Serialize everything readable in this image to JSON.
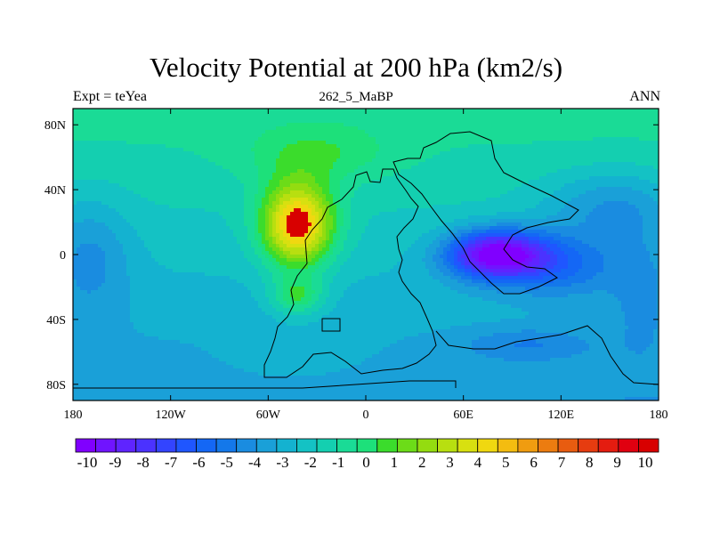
{
  "chart_data": {
    "type": "heatmap",
    "title": "Velocity Potential at 200 hPa (km2/s)",
    "left_label": "Expt = teYea",
    "center_label": "262_5_MaBP",
    "right_label": "ANN",
    "x_ticks": [
      "180",
      "120W",
      "60W",
      "0",
      "60E",
      "120E",
      "180"
    ],
    "x_tick_values": [
      -180,
      -120,
      -60,
      0,
      60,
      120,
      180
    ],
    "y_ticks": [
      "80N",
      "40N",
      "0",
      "40S",
      "80S"
    ],
    "y_tick_values": [
      80,
      40,
      0,
      -40,
      -80
    ],
    "xlim": [
      -180,
      180
    ],
    "ylim": [
      -90,
      90
    ],
    "colorbar": {
      "levels": [
        -10,
        -9,
        -8,
        -7,
        -6,
        -5,
        -4,
        -3,
        -2,
        -1,
        0,
        1,
        2,
        3,
        4,
        5,
        6,
        7,
        8,
        9,
        10
      ],
      "labels": [
        "-10",
        "-9",
        "-8",
        "-7",
        "-6",
        "-5",
        "-4",
        "-3",
        "-2",
        "-1",
        "0",
        "1",
        "2",
        "3",
        "4",
        "5",
        "6",
        "7",
        "8",
        "9",
        "10"
      ],
      "colors": [
        "#8000ff",
        "#7014ff",
        "#5f24ff",
        "#4b32ff",
        "#3344ff",
        "#1f56ff",
        "#1467f5",
        "#1478ea",
        "#1a8ce0",
        "#1aa0d8",
        "#14b2d0",
        "#14c2c4",
        "#14cfb0",
        "#1adb96",
        "#1de07a",
        "#3bdc2c",
        "#6cdc18",
        "#94dc10",
        "#b8df10",
        "#d8e010",
        "#f0d810",
        "#f4bc10",
        "#f09c10",
        "#ec7c10",
        "#e85c10",
        "#e63c10",
        "#e41c10",
        "#e00010",
        "#d80000"
      ]
    },
    "field_centers": [
      {
        "name": "upper-level divergence maximum",
        "lon": -40,
        "lat": 15,
        "value": 10
      },
      {
        "name": "upper-level convergence minimum",
        "lon": 75,
        "lat": 0,
        "value": -10
      }
    ]
  }
}
